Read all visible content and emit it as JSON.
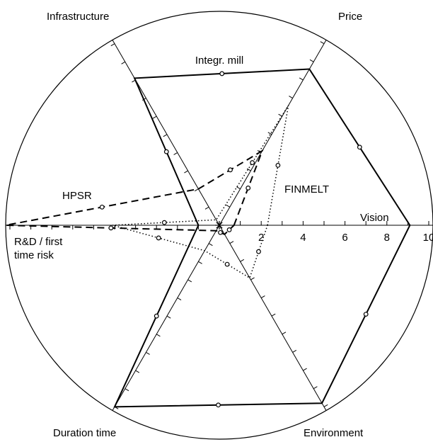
{
  "chart_data": {
    "type": "radar",
    "axes": [
      "Vision",
      "Price",
      "Infrastructure",
      "R&D / first time risk",
      "Duration time",
      "Environment"
    ],
    "rlim": [
      0,
      10
    ],
    "rticks": [
      2,
      4,
      6,
      8,
      10
    ],
    "rminor": [
      1,
      2,
      3,
      4,
      5,
      6,
      7,
      8,
      9,
      10
    ],
    "series": [
      {
        "name": "Integr. mill",
        "color": "#000000",
        "style": "solid",
        "values": [
          9.1,
          8.6,
          8.1,
          1.0,
          10.0,
          9.8
        ]
      },
      {
        "name": "HPSR",
        "color": "#000000",
        "style": "dashed",
        "values": [
          0.7,
          4.1,
          2.0,
          10.2,
          0.3,
          0.5
        ]
      },
      {
        "name": "FINMELT",
        "color": "#000000",
        "style": "dotted",
        "values": [
          2.3,
          6.6,
          0.3,
          5.1,
          1.4,
          2.9
        ]
      }
    ]
  }
}
